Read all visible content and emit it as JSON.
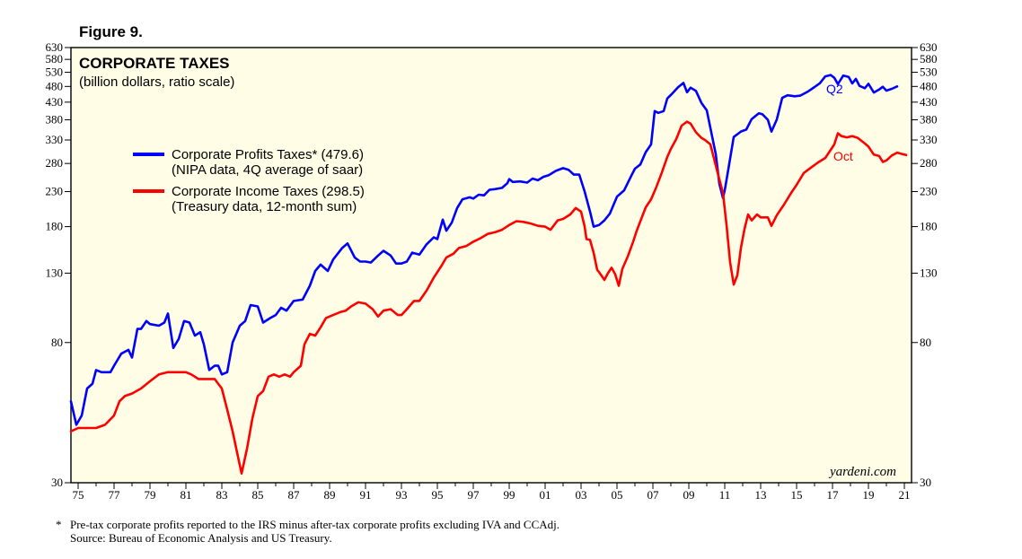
{
  "figure_label": "Figure 9.",
  "footnote": {
    "marker": "*",
    "line1": "Pre-tax corporate profits reported to the IRS minus after-tax corporate profits excluding IVA and CCAdj.",
    "line2": "Source: Bureau of Economic Analysis and US Treasury."
  },
  "chart_data": {
    "type": "line",
    "title": "CORPORATE TAXES",
    "subtitle": "(billion dollars, ratio scale)",
    "y_scale": "log",
    "ylim": [
      30,
      630
    ],
    "xlim": [
      1974.6,
      2021.4
    ],
    "y_ticks": [
      30,
      80,
      130,
      180,
      230,
      280,
      330,
      380,
      430,
      480,
      530,
      580,
      630
    ],
    "x_tick_labels": [
      "75",
      "77",
      "79",
      "81",
      "83",
      "85",
      "87",
      "89",
      "91",
      "93",
      "95",
      "97",
      "99",
      "01",
      "03",
      "05",
      "07",
      "09",
      "11",
      "13",
      "15",
      "17",
      "19",
      "21"
    ],
    "credit": "yardeni.com",
    "colors": {
      "plot_bg": "#fffde6",
      "profits": "#0000ff",
      "income": "#ff0000"
    },
    "series": [
      {
        "name": "Corporate Profits Taxes* (479.6)",
        "note": "(NIPA data, 4Q average of saar)",
        "end_label": "Q2",
        "points": [
          [
            1974.6,
            53
          ],
          [
            1974.9,
            45
          ],
          [
            1975.2,
            48
          ],
          [
            1975.5,
            58
          ],
          [
            1975.8,
            60
          ],
          [
            1976.0,
            66
          ],
          [
            1976.3,
            65
          ],
          [
            1976.8,
            65
          ],
          [
            1977.0,
            68
          ],
          [
            1977.4,
            74
          ],
          [
            1977.8,
            76
          ],
          [
            1978.0,
            72
          ],
          [
            1978.3,
            88
          ],
          [
            1978.5,
            88
          ],
          [
            1978.8,
            93
          ],
          [
            1979.0,
            91
          ],
          [
            1979.5,
            90
          ],
          [
            1979.8,
            92
          ],
          [
            1980.0,
            98
          ],
          [
            1980.3,
            77
          ],
          [
            1980.6,
            82
          ],
          [
            1980.9,
            93
          ],
          [
            1981.2,
            92
          ],
          [
            1981.5,
            84
          ],
          [
            1981.8,
            86
          ],
          [
            1982.0,
            79
          ],
          [
            1982.3,
            66
          ],
          [
            1982.6,
            68
          ],
          [
            1982.8,
            68
          ],
          [
            1983.0,
            64
          ],
          [
            1983.3,
            65
          ],
          [
            1983.6,
            80
          ],
          [
            1984.0,
            90
          ],
          [
            1984.3,
            93
          ],
          [
            1984.6,
            104
          ],
          [
            1985.0,
            103
          ],
          [
            1985.3,
            92
          ],
          [
            1985.7,
            95
          ],
          [
            1986.0,
            97
          ],
          [
            1986.3,
            102
          ],
          [
            1986.6,
            100
          ],
          [
            1987.0,
            107
          ],
          [
            1987.5,
            108
          ],
          [
            1987.9,
            119
          ],
          [
            1988.2,
            132
          ],
          [
            1988.5,
            138
          ],
          [
            1988.9,
            132
          ],
          [
            1989.2,
            143
          ],
          [
            1989.7,
            155
          ],
          [
            1990.0,
            160
          ],
          [
            1990.4,
            145
          ],
          [
            1990.7,
            141
          ],
          [
            1991.0,
            141
          ],
          [
            1991.3,
            140
          ],
          [
            1991.7,
            147
          ],
          [
            1992.0,
            152
          ],
          [
            1992.4,
            147
          ],
          [
            1992.7,
            139
          ],
          [
            1993.0,
            139
          ],
          [
            1993.3,
            141
          ],
          [
            1993.6,
            150
          ],
          [
            1994.0,
            148
          ],
          [
            1994.4,
            159
          ],
          [
            1994.8,
            167
          ],
          [
            1995.0,
            165
          ],
          [
            1995.3,
            189
          ],
          [
            1995.5,
            175
          ],
          [
            1995.8,
            185
          ],
          [
            1996.1,
            205
          ],
          [
            1996.4,
            218
          ],
          [
            1996.8,
            221
          ],
          [
            1997.0,
            219
          ],
          [
            1997.3,
            225
          ],
          [
            1997.6,
            224
          ],
          [
            1997.9,
            233
          ],
          [
            1998.2,
            234
          ],
          [
            1998.6,
            236
          ],
          [
            1998.9,
            244
          ],
          [
            1999.0,
            251
          ],
          [
            1999.2,
            246
          ],
          [
            1999.6,
            247
          ],
          [
            2000.0,
            245
          ],
          [
            2000.3,
            252
          ],
          [
            2000.6,
            249
          ],
          [
            2000.9,
            255
          ],
          [
            2001.2,
            258
          ],
          [
            2001.6,
            266
          ],
          [
            2002.0,
            271
          ],
          [
            2002.3,
            268
          ],
          [
            2002.6,
            259
          ],
          [
            2002.9,
            259
          ],
          [
            2003.2,
            230
          ],
          [
            2003.5,
            200
          ],
          [
            2003.7,
            180
          ],
          [
            2004.0,
            182
          ],
          [
            2004.3,
            188
          ],
          [
            2004.6,
            197
          ],
          [
            2005.0,
            222
          ],
          [
            2005.4,
            232
          ],
          [
            2005.8,
            257
          ],
          [
            2006.0,
            270
          ],
          [
            2006.3,
            278
          ],
          [
            2006.6,
            303
          ],
          [
            2006.9,
            320
          ],
          [
            2007.1,
            404
          ],
          [
            2007.3,
            399
          ],
          [
            2007.6,
            404
          ],
          [
            2007.8,
            441
          ],
          [
            2008.1,
            458
          ],
          [
            2008.4,
            477
          ],
          [
            2008.7,
            492
          ],
          [
            2008.9,
            461
          ],
          [
            2009.1,
            476
          ],
          [
            2009.4,
            465
          ],
          [
            2009.7,
            428
          ],
          [
            2010.0,
            406
          ],
          [
            2010.3,
            338
          ],
          [
            2010.5,
            299
          ],
          [
            2010.7,
            243
          ],
          [
            2010.9,
            220
          ],
          [
            2011.0,
            232
          ],
          [
            2011.2,
            269
          ],
          [
            2011.5,
            337
          ],
          [
            2011.9,
            350
          ],
          [
            2012.2,
            355
          ],
          [
            2012.5,
            382
          ],
          [
            2012.9,
            398
          ],
          [
            2013.1,
            395
          ],
          [
            2013.4,
            380
          ],
          [
            2013.6,
            350
          ],
          [
            2013.9,
            381
          ],
          [
            2014.2,
            443
          ],
          [
            2014.5,
            451
          ],
          [
            2014.9,
            448
          ],
          [
            2015.2,
            450
          ],
          [
            2015.6,
            462
          ],
          [
            2016.0,
            478
          ],
          [
            2016.3,
            491
          ],
          [
            2016.6,
            515
          ],
          [
            2016.9,
            520
          ],
          [
            2017.1,
            510
          ],
          [
            2017.3,
            488
          ],
          [
            2017.6,
            518
          ],
          [
            2017.9,
            513
          ],
          [
            2018.1,
            490
          ],
          [
            2018.3,
            506
          ],
          [
            2018.5,
            482
          ],
          [
            2018.8,
            474
          ],
          [
            2019.0,
            489
          ],
          [
            2019.3,
            460
          ],
          [
            2019.6,
            470
          ],
          [
            2019.8,
            479
          ],
          [
            2020.0,
            466
          ],
          [
            2020.3,
            472
          ],
          [
            2020.6,
            480
          ]
        ]
      },
      {
        "name": "Corporate Income Taxes (298.5)",
        "note": "(Treasury data, 12-month sum)",
        "end_label": "Oct",
        "points": [
          [
            1974.6,
            43
          ],
          [
            1975.0,
            44
          ],
          [
            1975.5,
            44
          ],
          [
            1976.0,
            44
          ],
          [
            1976.5,
            45
          ],
          [
            1977.0,
            48
          ],
          [
            1977.3,
            53
          ],
          [
            1977.6,
            55
          ],
          [
            1978.0,
            56
          ],
          [
            1978.5,
            58
          ],
          [
            1979.0,
            61
          ],
          [
            1979.5,
            64
          ],
          [
            1980.0,
            65
          ],
          [
            1980.5,
            65
          ],
          [
            1981.0,
            65
          ],
          [
            1981.3,
            64
          ],
          [
            1981.7,
            62
          ],
          [
            1982.0,
            62
          ],
          [
            1982.3,
            62
          ],
          [
            1982.6,
            62
          ],
          [
            1983.0,
            58
          ],
          [
            1983.3,
            50
          ],
          [
            1983.6,
            43
          ],
          [
            1983.9,
            36
          ],
          [
            1984.1,
            32
          ],
          [
            1984.4,
            38
          ],
          [
            1984.7,
            47
          ],
          [
            1985.0,
            55
          ],
          [
            1985.3,
            57
          ],
          [
            1985.6,
            63
          ],
          [
            1985.9,
            64
          ],
          [
            1986.2,
            63
          ],
          [
            1986.5,
            64
          ],
          [
            1986.8,
            63
          ],
          [
            1987.0,
            65
          ],
          [
            1987.4,
            68
          ],
          [
            1987.6,
            79
          ],
          [
            1987.9,
            85
          ],
          [
            1988.2,
            84
          ],
          [
            1988.5,
            89
          ],
          [
            1988.8,
            95
          ],
          [
            1989.2,
            97
          ],
          [
            1989.6,
            99
          ],
          [
            1989.9,
            100
          ],
          [
            1990.2,
            103
          ],
          [
            1990.6,
            106
          ],
          [
            1991.0,
            105
          ],
          [
            1991.4,
            101
          ],
          [
            1991.7,
            96
          ],
          [
            1992.0,
            100
          ],
          [
            1992.4,
            101
          ],
          [
            1992.8,
            97
          ],
          [
            1993.0,
            97
          ],
          [
            1993.3,
            101
          ],
          [
            1993.7,
            107
          ],
          [
            1994.0,
            107
          ],
          [
            1994.4,
            115
          ],
          [
            1994.8,
            126
          ],
          [
            1995.2,
            136
          ],
          [
            1995.5,
            145
          ],
          [
            1995.9,
            149
          ],
          [
            1996.2,
            155
          ],
          [
            1996.6,
            157
          ],
          [
            1997.0,
            162
          ],
          [
            1997.4,
            166
          ],
          [
            1997.8,
            171
          ],
          [
            1998.2,
            173
          ],
          [
            1998.6,
            176
          ],
          [
            1999.0,
            182
          ],
          [
            1999.4,
            187
          ],
          [
            1999.8,
            186
          ],
          [
            2000.2,
            184
          ],
          [
            2000.6,
            181
          ],
          [
            2001.0,
            180
          ],
          [
            2001.3,
            176
          ],
          [
            2001.7,
            188
          ],
          [
            2002.0,
            190
          ],
          [
            2002.4,
            196
          ],
          [
            2002.7,
            205
          ],
          [
            2003.0,
            200
          ],
          [
            2003.2,
            180
          ],
          [
            2003.3,
            165
          ],
          [
            2003.5,
            164
          ],
          [
            2003.7,
            150
          ],
          [
            2003.9,
            133
          ],
          [
            2004.0,
            131
          ],
          [
            2004.3,
            124
          ],
          [
            2004.5,
            130
          ],
          [
            2004.7,
            135
          ],
          [
            2004.9,
            129
          ],
          [
            2005.1,
            119
          ],
          [
            2005.3,
            134
          ],
          [
            2005.6,
            146
          ],
          [
            2005.9,
            162
          ],
          [
            2006.1,
            175
          ],
          [
            2006.4,
            193
          ],
          [
            2006.6,
            206
          ],
          [
            2006.9,
            218
          ],
          [
            2007.2,
            238
          ],
          [
            2007.5,
            263
          ],
          [
            2007.8,
            293
          ],
          [
            2008.0,
            310
          ],
          [
            2008.3,
            332
          ],
          [
            2008.6,
            365
          ],
          [
            2008.9,
            375
          ],
          [
            2009.1,
            370
          ],
          [
            2009.4,
            348
          ],
          [
            2009.7,
            335
          ],
          [
            2009.9,
            330
          ],
          [
            2010.2,
            320
          ],
          [
            2010.6,
            263
          ],
          [
            2010.9,
            228
          ],
          [
            2011.1,
            182
          ],
          [
            2011.3,
            140
          ],
          [
            2011.5,
            120
          ],
          [
            2011.7,
            128
          ],
          [
            2011.9,
            155
          ],
          [
            2012.1,
            177
          ],
          [
            2012.3,
            196
          ],
          [
            2012.5,
            188
          ],
          [
            2012.8,
            196
          ],
          [
            2013.0,
            192
          ],
          [
            2013.4,
            192
          ],
          [
            2013.6,
            181
          ],
          [
            2013.9,
            195
          ],
          [
            2014.3,
            210
          ],
          [
            2014.7,
            228
          ],
          [
            2015.0,
            241
          ],
          [
            2015.4,
            262
          ],
          [
            2015.8,
            272
          ],
          [
            2016.2,
            282
          ],
          [
            2016.6,
            291
          ],
          [
            2016.9,
            308
          ],
          [
            2017.1,
            320
          ],
          [
            2017.3,
            346
          ],
          [
            2017.5,
            339
          ],
          [
            2017.8,
            336
          ],
          [
            2018.1,
            339
          ],
          [
            2018.4,
            335
          ],
          [
            2018.8,
            322
          ],
          [
            2019.0,
            315
          ],
          [
            2019.3,
            298
          ],
          [
            2019.6,
            295
          ],
          [
            2019.8,
            283
          ],
          [
            2020.0,
            286
          ],
          [
            2020.3,
            296
          ],
          [
            2020.6,
            302
          ],
          [
            2020.9,
            299
          ],
          [
            2021.1,
            297
          ]
        ]
      }
    ]
  }
}
